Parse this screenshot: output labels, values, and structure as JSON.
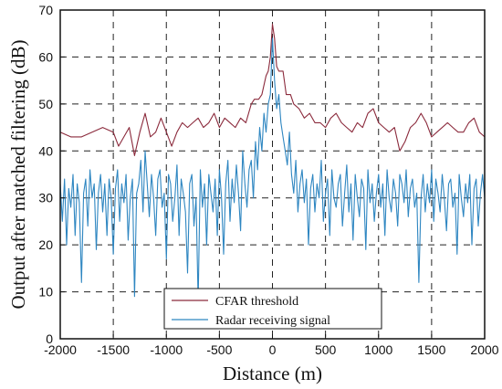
{
  "chart_data": {
    "type": "line",
    "title": "",
    "xlabel": "Distance (m)",
    "ylabel": "Output after matched filtering (dB)",
    "xlim": [
      -2000,
      2000
    ],
    "ylim": [
      0,
      70
    ],
    "xticks": [
      -2000,
      -1500,
      -1000,
      -500,
      0,
      500,
      1000,
      1500,
      2000
    ],
    "yticks": [
      0,
      10,
      20,
      30,
      40,
      50,
      60,
      70
    ],
    "grid": true,
    "grid_style": "dashed",
    "legend_position": "bottom-center",
    "series": [
      {
        "name": "CFAR threshold",
        "color": "#8b2a3c",
        "x": [
          -2000,
          -1900,
          -1800,
          -1700,
          -1600,
          -1500,
          -1450,
          -1350,
          -1300,
          -1250,
          -1200,
          -1150,
          -1100,
          -1050,
          -1000,
          -950,
          -900,
          -850,
          -800,
          -750,
          -700,
          -650,
          -600,
          -550,
          -500,
          -450,
          -400,
          -350,
          -300,
          -250,
          -200,
          -170,
          -130,
          -100,
          -80,
          -60,
          -40,
          -20,
          0,
          20,
          40,
          60,
          80,
          100,
          130,
          170,
          200,
          250,
          300,
          350,
          400,
          450,
          500,
          550,
          600,
          650,
          700,
          750,
          800,
          850,
          900,
          950,
          1000,
          1050,
          1100,
          1150,
          1200,
          1250,
          1300,
          1350,
          1400,
          1450,
          1500,
          1550,
          1600,
          1650,
          1700,
          1750,
          1800,
          1850,
          1900,
          1950,
          2000
        ],
        "values": [
          44,
          43,
          43,
          44,
          45,
          44,
          41,
          45,
          39,
          44,
          48,
          43,
          44,
          47,
          44,
          41,
          44,
          46,
          45,
          46,
          47,
          45,
          46,
          48,
          45,
          47,
          46,
          45,
          47,
          46,
          50,
          51,
          51,
          52,
          54,
          56,
          57,
          60,
          67,
          64,
          58,
          57,
          57,
          57,
          52,
          52,
          50,
          49,
          47,
          48,
          46,
          46,
          45,
          47,
          48,
          46,
          45,
          44,
          46,
          45,
          48,
          49,
          46,
          45,
          44,
          45,
          40,
          42,
          45,
          46,
          48,
          46,
          43,
          44,
          45,
          46,
          45,
          44,
          44,
          46,
          47,
          44,
          43
        ]
      },
      {
        "name": "Radar receiving signal",
        "color": "#2e86c1",
        "x": [
          -2000,
          -1980,
          -1960,
          -1940,
          -1920,
          -1900,
          -1880,
          -1860,
          -1840,
          -1820,
          -1800,
          -1780,
          -1760,
          -1740,
          -1720,
          -1700,
          -1680,
          -1660,
          -1640,
          -1620,
          -1600,
          -1580,
          -1560,
          -1540,
          -1520,
          -1500,
          -1480,
          -1460,
          -1440,
          -1420,
          -1400,
          -1380,
          -1360,
          -1340,
          -1320,
          -1300,
          -1280,
          -1260,
          -1240,
          -1220,
          -1200,
          -1180,
          -1160,
          -1140,
          -1120,
          -1100,
          -1080,
          -1060,
          -1040,
          -1020,
          -1000,
          -980,
          -960,
          -940,
          -920,
          -900,
          -880,
          -860,
          -840,
          -820,
          -800,
          -780,
          -760,
          -740,
          -720,
          -700,
          -680,
          -660,
          -640,
          -620,
          -600,
          -580,
          -560,
          -540,
          -520,
          -500,
          -480,
          -460,
          -440,
          -420,
          -400,
          -380,
          -360,
          -340,
          -320,
          -300,
          -280,
          -260,
          -240,
          -220,
          -200,
          -180,
          -160,
          -140,
          -120,
          -100,
          -80,
          -60,
          -40,
          -20,
          0,
          20,
          40,
          60,
          80,
          100,
          120,
          140,
          160,
          180,
          200,
          220,
          240,
          260,
          280,
          300,
          320,
          340,
          360,
          380,
          400,
          420,
          440,
          460,
          480,
          500,
          520,
          540,
          560,
          580,
          600,
          620,
          640,
          660,
          680,
          700,
          720,
          740,
          760,
          780,
          800,
          820,
          840,
          860,
          880,
          900,
          920,
          940,
          960,
          980,
          1000,
          1020,
          1040,
          1060,
          1080,
          1100,
          1120,
          1140,
          1160,
          1180,
          1200,
          1220,
          1240,
          1260,
          1280,
          1300,
          1320,
          1340,
          1360,
          1380,
          1400,
          1420,
          1440,
          1460,
          1480,
          1500,
          1520,
          1540,
          1560,
          1580,
          1600,
          1620,
          1640,
          1660,
          1680,
          1700,
          1720,
          1740,
          1760,
          1780,
          1800,
          1820,
          1840,
          1860,
          1880,
          1900,
          1920,
          1940,
          1960,
          1980,
          2000
        ],
        "values": [
          33,
          25,
          34,
          20,
          32,
          28,
          35,
          22,
          33,
          29,
          12,
          31,
          34,
          24,
          36,
          30,
          33,
          19,
          31,
          35,
          27,
          33,
          22,
          34,
          30,
          18,
          32,
          36,
          25,
          33,
          29,
          35,
          21,
          30,
          34,
          9,
          31,
          33,
          38,
          27,
          40,
          33,
          26,
          35,
          30,
          22,
          34,
          36,
          28,
          31,
          17,
          35,
          33,
          25,
          30,
          37,
          22,
          34,
          31,
          27,
          14,
          33,
          35,
          24,
          30,
          8,
          36,
          28,
          33,
          20,
          35,
          31,
          27,
          34,
          22,
          36,
          30,
          18,
          33,
          38,
          25,
          34,
          29,
          37,
          31,
          23,
          40,
          33,
          28,
          36,
          38,
          30,
          42,
          36,
          45,
          40,
          48,
          44,
          50,
          52,
          64,
          55,
          49,
          52,
          46,
          43,
          40,
          37,
          44,
          35,
          31,
          38,
          27,
          33,
          36,
          29,
          34,
          20,
          32,
          35,
          27,
          33,
          30,
          38,
          25,
          31,
          34,
          22,
          36,
          30,
          28,
          33,
          35,
          24,
          31,
          37,
          27,
          33,
          21,
          35,
          30,
          26,
          34,
          32,
          19,
          36,
          29,
          33,
          25,
          31,
          35,
          28,
          33,
          22,
          36,
          30,
          27,
          34,
          31,
          24,
          35,
          33,
          29,
          36,
          26,
          32,
          34,
          28,
          31,
          12,
          30,
          35,
          27,
          33,
          29,
          36,
          25,
          34,
          31,
          27,
          35,
          30,
          23,
          33,
          34,
          28,
          31,
          18,
          35,
          30,
          26,
          33,
          29,
          35,
          20,
          32,
          34,
          24,
          31,
          35,
          30
        ]
      }
    ]
  }
}
